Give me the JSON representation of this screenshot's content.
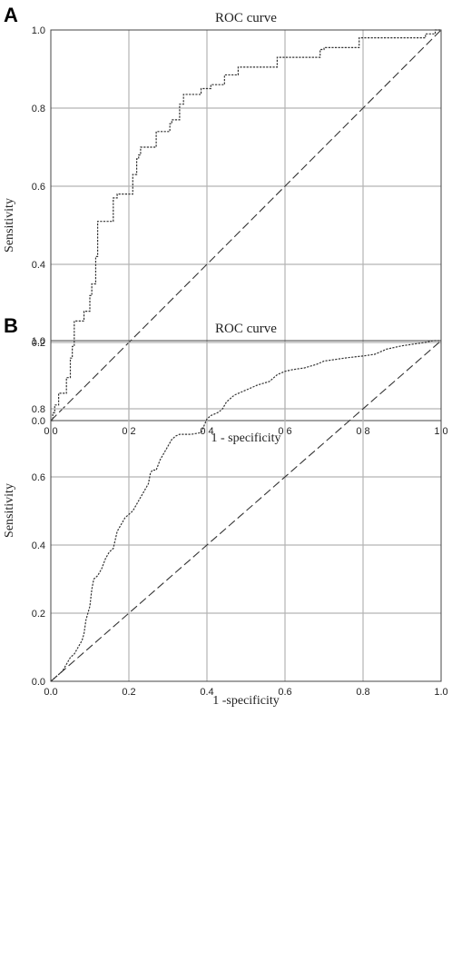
{
  "chart_data": [
    {
      "type": "line",
      "panel": "A",
      "title": "ROC curve",
      "xlabel": "1 - specificity",
      "ylabel": "Sensitivity",
      "xlim": [
        0,
        1
      ],
      "ylim": [
        0,
        1
      ],
      "xticks": [
        "0.0",
        "0.2",
        "0.4",
        "0.6",
        "0.8",
        "1.0"
      ],
      "yticks": [
        "0.0",
        "0.2",
        "0.4",
        "0.6",
        "0.8",
        "1.0"
      ],
      "grid": true,
      "series": [
        {
          "style": "dotted",
          "x": [
            0.0,
            0.005,
            0.005,
            0.01,
            0.01,
            0.02,
            0.02,
            0.03,
            0.03,
            0.04,
            0.04,
            0.05,
            0.05,
            0.055,
            0.055,
            0.06,
            0.06,
            0.065,
            0.065,
            0.085,
            0.085,
            0.1,
            0.1,
            0.105,
            0.105,
            0.115,
            0.115,
            0.12,
            0.12,
            0.135,
            0.135,
            0.16,
            0.16,
            0.17,
            0.17,
            0.175,
            0.175,
            0.21,
            0.21,
            0.22,
            0.22,
            0.225,
            0.225,
            0.23,
            0.23,
            0.24,
            0.24,
            0.27,
            0.27,
            0.285,
            0.285,
            0.305,
            0.305,
            0.31,
            0.31,
            0.33,
            0.33,
            0.34,
            0.34,
            0.385,
            0.385,
            0.41,
            0.41,
            0.445,
            0.445,
            0.48,
            0.48,
            0.555,
            0.555,
            0.58,
            0.58,
            0.66,
            0.66,
            0.69,
            0.69,
            0.7,
            0.7,
            0.79,
            0.79,
            0.96,
            0.96,
            0.985,
            0.985,
            1.0
          ],
          "y": [
            0.0,
            0.0,
            0.02,
            0.02,
            0.04,
            0.04,
            0.07,
            0.07,
            0.07,
            0.07,
            0.11,
            0.11,
            0.16,
            0.16,
            0.19,
            0.19,
            0.255,
            0.255,
            0.255,
            0.255,
            0.28,
            0.28,
            0.32,
            0.32,
            0.35,
            0.35,
            0.42,
            0.42,
            0.51,
            0.51,
            0.51,
            0.51,
            0.57,
            0.57,
            0.58,
            0.58,
            0.58,
            0.58,
            0.63,
            0.63,
            0.67,
            0.67,
            0.68,
            0.68,
            0.7,
            0.7,
            0.7,
            0.7,
            0.74,
            0.74,
            0.74,
            0.74,
            0.76,
            0.76,
            0.77,
            0.77,
            0.81,
            0.81,
            0.835,
            0.835,
            0.85,
            0.85,
            0.86,
            0.86,
            0.885,
            0.885,
            0.905,
            0.905,
            0.905,
            0.905,
            0.93,
            0.93,
            0.93,
            0.93,
            0.95,
            0.95,
            0.955,
            0.955,
            0.98,
            0.98,
            0.99,
            0.99,
            1.0,
            1.0
          ]
        },
        {
          "style": "dashed",
          "x": [
            0,
            1
          ],
          "y": [
            0,
            1
          ]
        }
      ]
    },
    {
      "type": "line",
      "panel": "B",
      "title": "ROC curve",
      "xlabel": "1 -specificity",
      "ylabel": "Sensitivity",
      "xlim": [
        0,
        1
      ],
      "ylim": [
        0,
        1
      ],
      "xticks": [
        "0.0",
        "0.2",
        "0.4",
        "0.6",
        "0.8",
        "1.0"
      ],
      "yticks": [
        "0.0",
        "0.2",
        "0.4",
        "0.6",
        "0.8",
        "1.0"
      ],
      "grid": true,
      "series": [
        {
          "style": "dotted",
          "x": [
            0.0,
            0.01,
            0.02,
            0.03,
            0.04,
            0.05,
            0.06,
            0.07,
            0.08,
            0.085,
            0.09,
            0.1,
            0.105,
            0.11,
            0.12,
            0.13,
            0.14,
            0.15,
            0.16,
            0.17,
            0.18,
            0.19,
            0.2,
            0.21,
            0.22,
            0.235,
            0.25,
            0.255,
            0.26,
            0.27,
            0.28,
            0.29,
            0.3,
            0.31,
            0.32,
            0.33,
            0.34,
            0.36,
            0.385,
            0.4,
            0.405,
            0.41,
            0.43,
            0.44,
            0.45,
            0.47,
            0.49,
            0.51,
            0.53,
            0.56,
            0.58,
            0.59,
            0.6,
            0.62,
            0.65,
            0.68,
            0.7,
            0.73,
            0.76,
            0.8,
            0.83,
            0.86,
            0.9,
            0.93,
            0.96,
            0.98,
            1.0
          ],
          "y": [
            0.0,
            0.01,
            0.02,
            0.03,
            0.05,
            0.07,
            0.08,
            0.1,
            0.12,
            0.14,
            0.18,
            0.22,
            0.27,
            0.3,
            0.31,
            0.33,
            0.36,
            0.38,
            0.39,
            0.44,
            0.46,
            0.48,
            0.49,
            0.5,
            0.52,
            0.55,
            0.58,
            0.61,
            0.62,
            0.62,
            0.65,
            0.67,
            0.69,
            0.71,
            0.72,
            0.725,
            0.725,
            0.725,
            0.73,
            0.77,
            0.775,
            0.78,
            0.79,
            0.8,
            0.82,
            0.84,
            0.85,
            0.86,
            0.87,
            0.88,
            0.9,
            0.905,
            0.91,
            0.915,
            0.92,
            0.93,
            0.94,
            0.945,
            0.95,
            0.955,
            0.96,
            0.975,
            0.985,
            0.99,
            0.995,
            1.0,
            1.0
          ]
        },
        {
          "style": "dashed",
          "x": [
            0,
            1
          ],
          "y": [
            0,
            1
          ]
        }
      ]
    }
  ]
}
